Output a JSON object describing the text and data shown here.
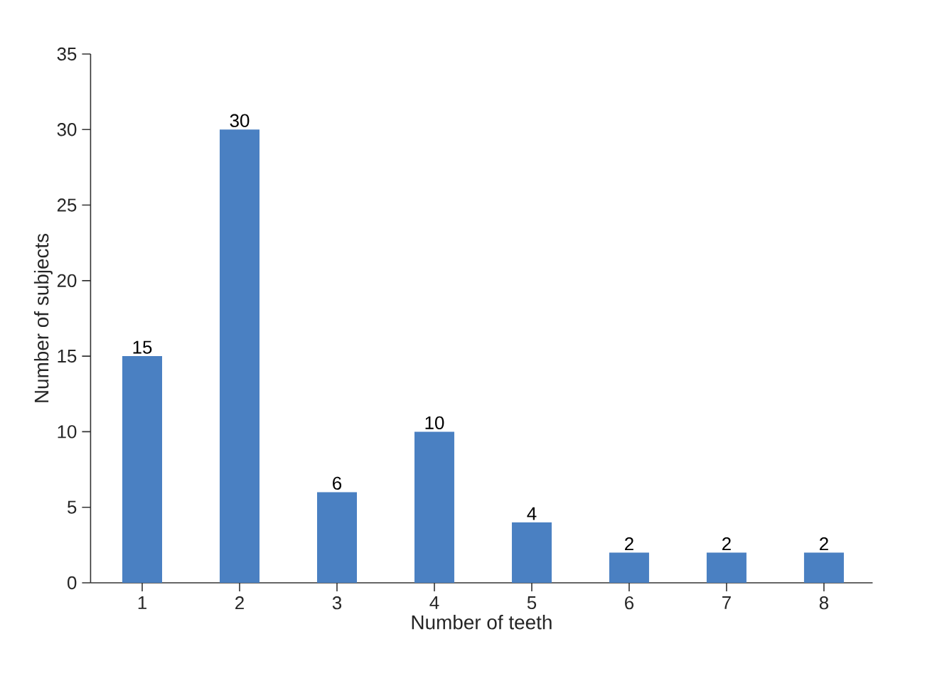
{
  "chart_data": {
    "type": "bar",
    "xlabel": "Number of teeth",
    "ylabel": "Number of subjects",
    "categories": [
      "1",
      "2",
      "3",
      "4",
      "5",
      "6",
      "7",
      "8"
    ],
    "values": [
      15,
      30,
      6,
      10,
      4,
      2,
      2,
      2
    ],
    "color": "#4a80c2",
    "ylim": [
      0,
      35
    ],
    "yticks": [
      0,
      5,
      10,
      15,
      20,
      25,
      30,
      35
    ],
    "data_labels": true
  }
}
